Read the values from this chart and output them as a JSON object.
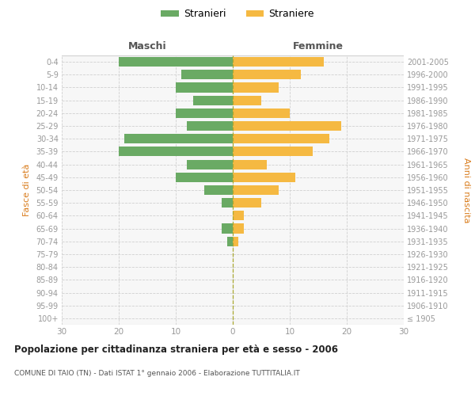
{
  "age_groups": [
    "100+",
    "95-99",
    "90-94",
    "85-89",
    "80-84",
    "75-79",
    "70-74",
    "65-69",
    "60-64",
    "55-59",
    "50-54",
    "45-49",
    "40-44",
    "35-39",
    "30-34",
    "25-29",
    "20-24",
    "15-19",
    "10-14",
    "5-9",
    "0-4"
  ],
  "birth_years": [
    "≤ 1905",
    "1906-1910",
    "1911-1915",
    "1916-1920",
    "1921-1925",
    "1926-1930",
    "1931-1935",
    "1936-1940",
    "1941-1945",
    "1946-1950",
    "1951-1955",
    "1956-1960",
    "1961-1965",
    "1966-1970",
    "1971-1975",
    "1976-1980",
    "1981-1985",
    "1986-1990",
    "1991-1995",
    "1996-2000",
    "2001-2005"
  ],
  "males": [
    0,
    0,
    0,
    0,
    0,
    0,
    1,
    2,
    0,
    2,
    5,
    10,
    8,
    20,
    19,
    8,
    10,
    7,
    10,
    9,
    20
  ],
  "females": [
    0,
    0,
    0,
    0,
    0,
    0,
    1,
    2,
    2,
    5,
    8,
    11,
    6,
    14,
    17,
    19,
    10,
    5,
    8,
    12,
    16
  ],
  "male_color": "#6aaa64",
  "female_color": "#f5b942",
  "title": "Popolazione per cittadinanza straniera per età e sesso - 2006",
  "subtitle": "COMUNE DI TAIO (TN) - Dati ISTAT 1° gennaio 2006 - Elaborazione TUTTITALIA.IT",
  "legend_male": "Stranieri",
  "legend_female": "Straniere",
  "label_left": "Maschi",
  "label_right": "Femmine",
  "ylabel_left": "Fasce di età",
  "ylabel_right": "Anni di nascita",
  "xlim": 30,
  "bg_color": "#ffffff",
  "plot_bg": "#f7f7f7",
  "grid_color": "#d0d0d0",
  "bar_height": 0.75,
  "tick_color": "#999999",
  "label_color": "#666666",
  "header_color": "#555555",
  "orange_label": "#d97b1a"
}
